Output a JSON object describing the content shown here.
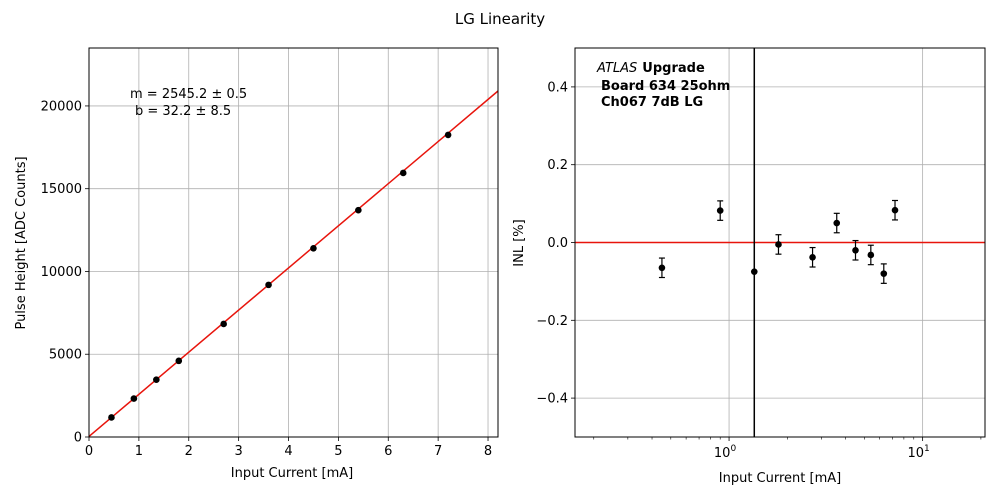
{
  "figure": {
    "title": "LG Linearity"
  },
  "chart_data": [
    {
      "type": "scatter",
      "xlabel": "Input Current [mA]",
      "ylabel": "Pulse Height [ADC Counts]",
      "xlim": [
        0,
        8.2
      ],
      "ylim": [
        0,
        23500
      ],
      "xticks": [
        0,
        1,
        2,
        3,
        4,
        5,
        6,
        7,
        8
      ],
      "yticks": [
        0,
        5000,
        10000,
        15000,
        20000
      ],
      "grid": true,
      "series": [
        {
          "color": "#000000",
          "points": [
            [
              0.45,
              1180
            ],
            [
              0.9,
              2320
            ],
            [
              1.35,
              3460
            ],
            [
              1.8,
              4600
            ],
            [
              2.7,
              6830
            ],
            [
              3.6,
              9190
            ],
            [
              4.5,
              11400
            ],
            [
              5.4,
              13700
            ],
            [
              6.3,
              15950
            ],
            [
              7.2,
              18250
            ]
          ]
        }
      ],
      "fit_line": {
        "color": "#e8140c",
        "slope": 2545.2,
        "intercept": 32.2
      },
      "annotation": {
        "line1": "m = 2545.2 ± 0.5",
        "line2": "b = 32.2 ± 8.5"
      }
    },
    {
      "type": "scatter",
      "xscale": "log",
      "xlabel": "Input Current [mA]",
      "ylabel": "INL [%]",
      "xlim": [
        0.16,
        21
      ],
      "ylim": [
        -0.5,
        0.5
      ],
      "xticks": [
        1,
        10
      ],
      "xtick_labels": [
        {
          "base": "10",
          "exp": "0"
        },
        {
          "base": "10",
          "exp": "1"
        }
      ],
      "yticks": [
        -0.4,
        -0.2,
        0.0,
        0.2,
        0.4
      ],
      "ytick_labels": [
        "−0.4",
        "−0.2",
        "0.0",
        "0.2",
        "0.4"
      ],
      "grid": true,
      "series": [
        {
          "color": "#000000",
          "points": [
            {
              "x": 0.45,
              "y": -0.065,
              "err": 0.025
            },
            {
              "x": 0.9,
              "y": 0.082,
              "err": 0.025
            },
            {
              "x": 1.35,
              "y": -0.075,
              "err": 0.0
            },
            {
              "x": 1.8,
              "y": -0.005,
              "err": 0.025
            },
            {
              "x": 2.7,
              "y": -0.038,
              "err": 0.025
            },
            {
              "x": 3.6,
              "y": 0.05,
              "err": 0.025
            },
            {
              "x": 4.5,
              "y": -0.02,
              "err": 0.025
            },
            {
              "x": 5.4,
              "y": -0.032,
              "err": 0.025
            },
            {
              "x": 6.3,
              "y": -0.08,
              "err": 0.025
            },
            {
              "x": 7.2,
              "y": 0.083,
              "err": 0.025
            }
          ]
        }
      ],
      "hline": {
        "y": 0.0,
        "color": "#e8140c"
      },
      "vline": {
        "x": 1.35,
        "color": "#000000"
      },
      "annotation": {
        "atlas_italic": "ATLAS",
        "atlas_bold": "Upgrade",
        "line2": "Board 634 25ohm",
        "line3": "Ch067 7dB LG"
      }
    }
  ]
}
